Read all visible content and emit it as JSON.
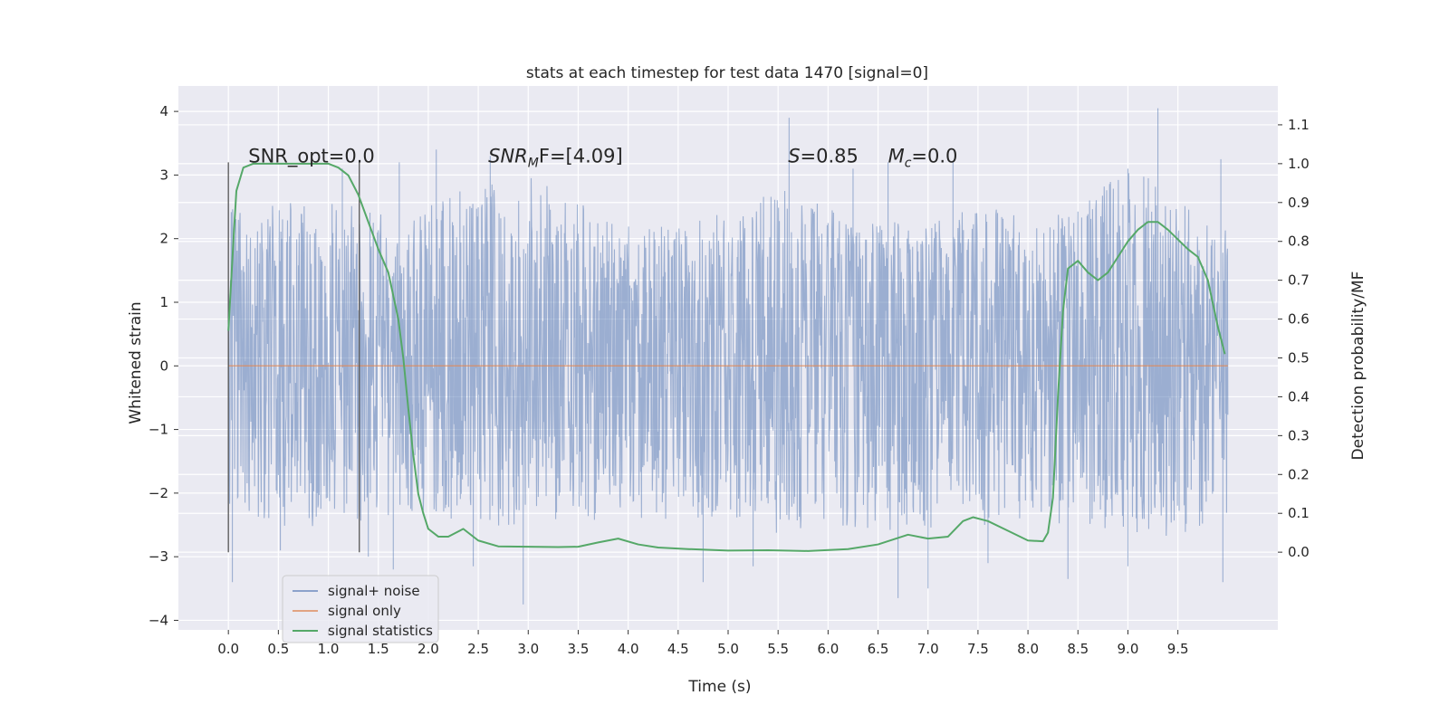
{
  "chart_data": {
    "type": "line",
    "title": "stats at each timestep for test data 1470 [signal=0]",
    "xlabel": "Time (s)",
    "ylabel": "Whitened strain",
    "ylabel_right": "Detection probability/MF",
    "xlim": [
      -0.5,
      10.5
    ],
    "ylim": [
      -4.15,
      4.4
    ],
    "ylim_right": [
      -0.2,
      1.2
    ],
    "grid": true,
    "x_ticks": [
      0.0,
      0.5,
      1.0,
      1.5,
      2.0,
      2.5,
      3.0,
      3.5,
      4.0,
      4.5,
      5.0,
      5.5,
      6.0,
      6.5,
      7.0,
      7.5,
      8.0,
      8.5,
      9.0,
      9.5
    ],
    "x_tick_labels": [
      "0.0",
      "0.5",
      "1.0",
      "1.5",
      "2.0",
      "2.5",
      "3.0",
      "3.5",
      "4.0",
      "4.5",
      "5.0",
      "5.5",
      "6.0",
      "6.5",
      "7.0",
      "7.5",
      "8.0",
      "8.5",
      "9.0",
      "9.5"
    ],
    "y_ticks": [
      4,
      3,
      2,
      1,
      0,
      -1,
      -2,
      -3,
      -4
    ],
    "y_tick_labels": [
      "4",
      "3",
      "2",
      "1",
      "0",
      "−1",
      "−2",
      "−3",
      "−4"
    ],
    "y_ticks_right": [
      1.1,
      1.0,
      0.9,
      0.8,
      0.7,
      0.6,
      0.5,
      0.4,
      0.3,
      0.2,
      0.1,
      0.0
    ],
    "y_tick_labels_right": [
      "1.1",
      "1.0",
      "0.9",
      "0.8",
      "0.7",
      "0.6",
      "0.5",
      "0.4",
      "0.3",
      "0.2",
      "0.1",
      "0.0"
    ],
    "legend": {
      "placement": "lower-left",
      "entries": [
        "signal+ noise",
        "signal only",
        "signal statistics"
      ]
    },
    "annotations": [
      {
        "text": "SNR_opt=0.0",
        "x": 0.2,
        "y": 3.2
      },
      {
        "text": "SNR_MF=[4.09]",
        "x": 2.6,
        "y": 3.2,
        "rich": true,
        "pre": "SNR",
        "sub": "M",
        "post": "F=[4.09]"
      },
      {
        "text": "S=0.85",
        "x": 5.6,
        "y": 3.2,
        "rich": true,
        "pre": "S",
        "sub": "",
        "post": "=0.85"
      },
      {
        "text": "M_c=0.0",
        "x": 6.6,
        "y": 3.2,
        "rich": true,
        "pre": "M",
        "sub": "c",
        "post": "=0.0"
      }
    ],
    "vlines": [
      {
        "x": 0.0,
        "ymin": -2.93,
        "ymax": 3.2
      },
      {
        "x": 1.31,
        "ymin": -2.93,
        "ymax": 3.2
      }
    ],
    "series": [
      {
        "name": "signal+ noise",
        "color": "#4c72b0",
        "axis": "left",
        "x_range": [
          0.0,
          10.0
        ],
        "style": "dense noise, mostly within ±1.4 with spikes",
        "envelope_upper": [
          [
            0.0,
            2.5
          ],
          [
            0.5,
            2.6
          ],
          [
            1.0,
            2.7
          ],
          [
            1.5,
            2.4
          ],
          [
            2.0,
            2.5
          ],
          [
            2.5,
            2.9
          ],
          [
            3.0,
            3.0
          ],
          [
            3.5,
            2.6
          ],
          [
            4.0,
            2.2
          ],
          [
            4.5,
            2.3
          ],
          [
            5.0,
            2.4
          ],
          [
            5.5,
            2.8
          ],
          [
            6.0,
            2.6
          ],
          [
            6.5,
            2.3
          ],
          [
            7.0,
            2.2
          ],
          [
            7.5,
            2.6
          ],
          [
            8.0,
            2.3
          ],
          [
            8.5,
            2.5
          ],
          [
            9.0,
            3.2
          ],
          [
            9.5,
            2.6
          ],
          [
            10.0,
            2.2
          ]
        ],
        "envelope_lower": [
          [
            0.0,
            -2.2
          ],
          [
            0.5,
            -2.6
          ],
          [
            1.0,
            -2.5
          ],
          [
            1.5,
            -2.4
          ],
          [
            2.0,
            -2.3
          ],
          [
            2.5,
            -2.6
          ],
          [
            3.0,
            -2.5
          ],
          [
            3.5,
            -2.4
          ],
          [
            4.0,
            -2.5
          ],
          [
            4.5,
            -2.4
          ],
          [
            5.0,
            -2.4
          ],
          [
            5.5,
            -2.7
          ],
          [
            6.0,
            -2.5
          ],
          [
            6.5,
            -2.6
          ],
          [
            7.0,
            -2.6
          ],
          [
            7.5,
            -2.5
          ],
          [
            8.0,
            -2.5
          ],
          [
            8.5,
            -2.6
          ],
          [
            9.0,
            -2.6
          ],
          [
            9.5,
            -2.7
          ],
          [
            10.0,
            -2.4
          ]
        ],
        "spikes": [
          [
            0.04,
            -3.4
          ],
          [
            0.52,
            -2.9
          ],
          [
            1.4,
            -3.0
          ],
          [
            1.65,
            -3.2
          ],
          [
            2.45,
            -3.15
          ],
          [
            2.95,
            -3.75
          ],
          [
            4.75,
            -3.4
          ],
          [
            5.25,
            -3.15
          ],
          [
            6.7,
            -3.65
          ],
          [
            7.0,
            -3.5
          ],
          [
            7.6,
            -3.1
          ],
          [
            8.4,
            -3.35
          ],
          [
            9.0,
            -3.15
          ],
          [
            9.95,
            -3.4
          ],
          [
            1.14,
            3.1
          ],
          [
            1.71,
            3.2
          ],
          [
            2.08,
            3.4
          ],
          [
            2.62,
            3.3
          ],
          [
            5.61,
            3.9
          ],
          [
            6.25,
            3.1
          ],
          [
            6.6,
            3.2
          ],
          [
            7.25,
            3.2
          ],
          [
            9.0,
            3.1
          ],
          [
            9.3,
            4.05
          ],
          [
            9.93,
            3.25
          ]
        ]
      },
      {
        "name": "signal only",
        "color": "#dd8452",
        "axis": "left",
        "x": [
          0.0,
          10.0
        ],
        "y": [
          0.0,
          0.0
        ]
      },
      {
        "name": "signal statistics",
        "color": "#55a868",
        "axis": "right",
        "x": [
          0.0,
          0.05,
          0.08,
          0.15,
          0.25,
          0.4,
          0.6,
          0.8,
          1.0,
          1.1,
          1.2,
          1.3,
          1.4,
          1.5,
          1.6,
          1.7,
          1.75,
          1.8,
          1.85,
          1.9,
          1.95,
          2.0,
          2.1,
          2.2,
          2.35,
          2.5,
          2.7,
          3.0,
          3.3,
          3.5,
          3.7,
          3.9,
          4.1,
          4.3,
          4.6,
          5.0,
          5.4,
          5.8,
          6.2,
          6.5,
          6.8,
          7.0,
          7.2,
          7.35,
          7.45,
          7.6,
          7.8,
          8.0,
          8.15,
          8.2,
          8.25,
          8.3,
          8.35,
          8.4,
          8.5,
          8.6,
          8.7,
          8.8,
          8.9,
          9.0,
          9.1,
          9.2,
          9.3,
          9.4,
          9.6,
          9.7,
          9.8,
          9.9,
          9.97
        ],
        "y": [
          0.57,
          0.8,
          0.93,
          0.99,
          1.0,
          1.0,
          1.0,
          1.0,
          1.0,
          0.99,
          0.97,
          0.92,
          0.85,
          0.78,
          0.72,
          0.6,
          0.5,
          0.37,
          0.25,
          0.15,
          0.1,
          0.06,
          0.04,
          0.04,
          0.06,
          0.03,
          0.015,
          0.014,
          0.013,
          0.014,
          0.025,
          0.035,
          0.02,
          0.012,
          0.008,
          0.004,
          0.005,
          0.003,
          0.008,
          0.02,
          0.045,
          0.035,
          0.04,
          0.08,
          0.09,
          0.08,
          0.055,
          0.03,
          0.028,
          0.05,
          0.14,
          0.4,
          0.62,
          0.73,
          0.75,
          0.72,
          0.7,
          0.72,
          0.76,
          0.8,
          0.83,
          0.85,
          0.85,
          0.83,
          0.78,
          0.76,
          0.7,
          0.58,
          0.51
        ]
      }
    ]
  }
}
